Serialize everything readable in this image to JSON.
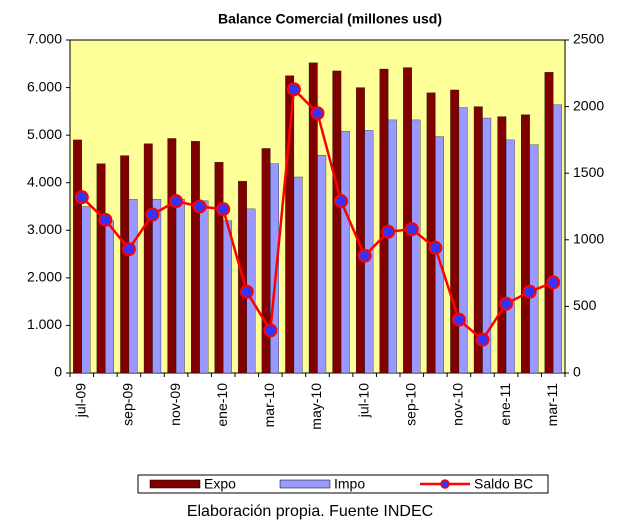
{
  "chart_data": {
    "type": "bar_line",
    "title": "Balance Comercial (millones usd)",
    "footer": "Elaboración propia. Fuente INDEC",
    "categories": [
      "jul-09",
      null,
      "sep-09",
      null,
      "nov-09",
      null,
      "ene-10",
      null,
      "mar-10",
      null,
      "may-10",
      null,
      "jul-10",
      null,
      "sep-10",
      null,
      "nov-10",
      null,
      "ene-11",
      null,
      "mar-11"
    ],
    "series": [
      {
        "name": "Expo",
        "type": "bar",
        "color": "#800000",
        "values": [
          4900,
          4400,
          4570,
          4820,
          4930,
          4870,
          4430,
          4030,
          4720,
          6250,
          6520,
          6350,
          6000,
          6390,
          6420,
          5890,
          5950,
          5600,
          5390,
          5430,
          6320
        ]
      },
      {
        "name": "Impo",
        "type": "bar",
        "color": "#9999ff",
        "values": [
          3500,
          3200,
          3650,
          3650,
          3650,
          3620,
          3200,
          3450,
          4400,
          4120,
          4580,
          5080,
          5100,
          5320,
          5320,
          4970,
          5580,
          5360,
          4900,
          4800,
          5640
        ]
      },
      {
        "name": "Saldo BC",
        "type": "line",
        "axis": "y2",
        "color": "#ff0000",
        "marker_color": "#3333ff",
        "values": [
          1320,
          1150,
          930,
          1190,
          1290,
          1250,
          1230,
          610,
          320,
          2130,
          1950,
          1290,
          880,
          1060,
          1080,
          940,
          400,
          250,
          520,
          610,
          680
        ]
      }
    ],
    "ylim": [
      0,
      7000
    ],
    "yticks": [
      0,
      {
        "value": 1000,
        "label": "1.000"
      },
      {
        "value": 2000,
        "label": "2.000"
      },
      {
        "value": 3000,
        "label": "3.000"
      },
      {
        "value": 4000,
        "label": "4.000"
      },
      {
        "value": 5000,
        "label": "5.000"
      },
      {
        "value": 6000,
        "label": "6.000"
      },
      {
        "value": 7000,
        "label": "7.000"
      }
    ],
    "y2lim": [
      0,
      2500
    ],
    "y2ticks": [
      0,
      500,
      1000,
      1500,
      2000,
      2500
    ],
    "plot_background": "#ffff99"
  }
}
